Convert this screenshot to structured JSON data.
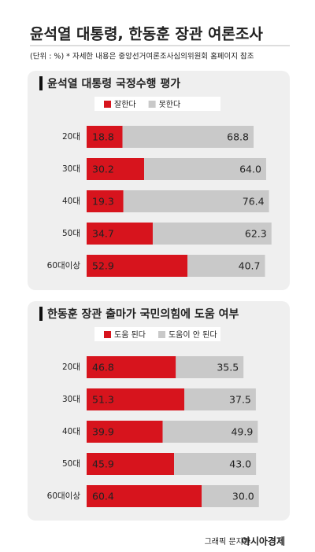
{
  "header": {
    "title": "윤석열 대통령, 한동훈 장관 여론조사",
    "subtitle": "(단위 : %)  * 자세한 내용은 중앙선거여론조사심의위원회 홈페이지 참조"
  },
  "chart_data": [
    {
      "type": "stacked-bar-horizontal",
      "title": "윤석열 대통령 국정수행 평가",
      "categories": [
        "20대",
        "30대",
        "40대",
        "50대",
        "60대이상"
      ],
      "xlim": [
        0,
        100
      ],
      "series": [
        {
          "name": "잘한다",
          "color": "#d7141d",
          "values": [
            18.8,
            30.2,
            19.3,
            34.7,
            52.9
          ],
          "value_labels": [
            "18.8",
            "30.2",
            "19.3",
            "34.7",
            "52.9"
          ]
        },
        {
          "name": "못한다",
          "color": "#c9c9c9",
          "values": [
            68.8,
            64.0,
            76.4,
            62.3,
            40.7
          ],
          "value_labels": [
            "68.8",
            "64.0",
            "76.4",
            "62.3",
            "40.7"
          ]
        }
      ]
    },
    {
      "type": "stacked-bar-horizontal",
      "title": "한동훈 장관 출마가 국민의힘에 도움 여부",
      "categories": [
        "20대",
        "30대",
        "40대",
        "50대",
        "60대이상"
      ],
      "xlim": [
        0,
        100
      ],
      "series": [
        {
          "name": "도움 된다",
          "color": "#d7141d",
          "values": [
            46.8,
            51.3,
            39.9,
            45.9,
            60.4
          ],
          "value_labels": [
            "46.8",
            "51.3",
            "39.9",
            "45.9",
            "60.4"
          ]
        },
        {
          "name": "도움이 안 된다",
          "color": "#c9c9c9",
          "values": [
            35.5,
            37.5,
            49.9,
            43.0,
            30.0
          ],
          "value_labels": [
            "35.5",
            "37.5",
            "49.9",
            "43.0",
            "30.0"
          ]
        }
      ]
    }
  ],
  "footer": {
    "credit": "그래픽 문지원",
    "brand": "아시아경제"
  }
}
